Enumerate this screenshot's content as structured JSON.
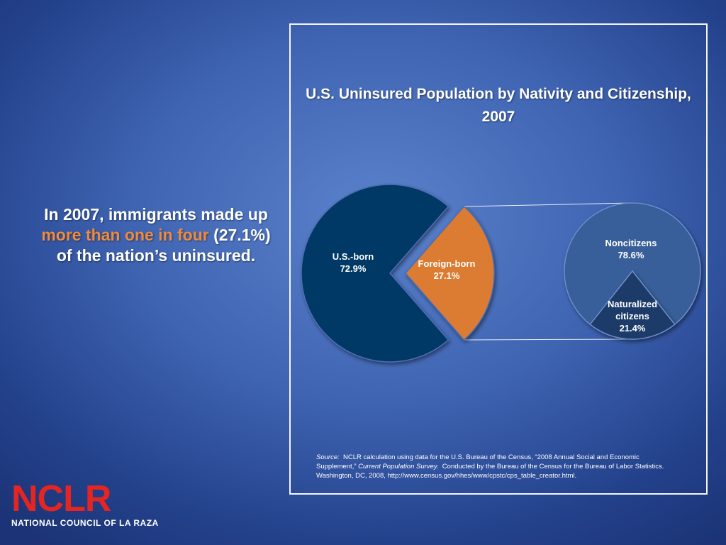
{
  "headline": {
    "pre": "In 2007, immigrants made up ",
    "highlight": "more than one in four",
    "post": " (27.1%) of the nation’s uninsured."
  },
  "colors": {
    "us_born": "#033866",
    "foreign_born": "#dc7b31",
    "noncitizens": "#375e99",
    "naturalized": "#1a3a68",
    "highlight_text": "#f08a3c",
    "logo_red": "#e52521"
  },
  "chart_data": [
    {
      "type": "pie",
      "title": "U.S. Uninsured Population by Nativity and Citizenship, 2007",
      "slices": [
        {
          "label": "U.S.-born",
          "value": 72.9,
          "value_label": "72.9%"
        },
        {
          "label": "Foreign-born",
          "value": 27.1,
          "value_label": "27.1%"
        }
      ]
    },
    {
      "type": "pie",
      "slices": [
        {
          "label": "Noncitizens",
          "value": 78.6,
          "value_label": "78.6%"
        },
        {
          "label": "Naturalized citizens",
          "label_lines": [
            "Naturalized",
            "citizens"
          ],
          "value": 21.4,
          "value_label": "21.4%"
        }
      ]
    }
  ],
  "source": {
    "label": "Source:",
    "text_a": "NCLR calculation using data for the U.S. Bureau of the Census, “2008 Annual Social and Economic Supplement,”",
    "publication": "Current Population Survey.",
    "text_b": "Conducted by the Bureau of the Census for the Bureau of Labor Statistics. Washington, DC, 2008, http://www.census.gov/hhes/www/cpstc/cps_table_creator.html."
  },
  "logo": {
    "mark": "NCLR",
    "subtitle": "NATIONAL COUNCIL OF LA RAZA"
  }
}
